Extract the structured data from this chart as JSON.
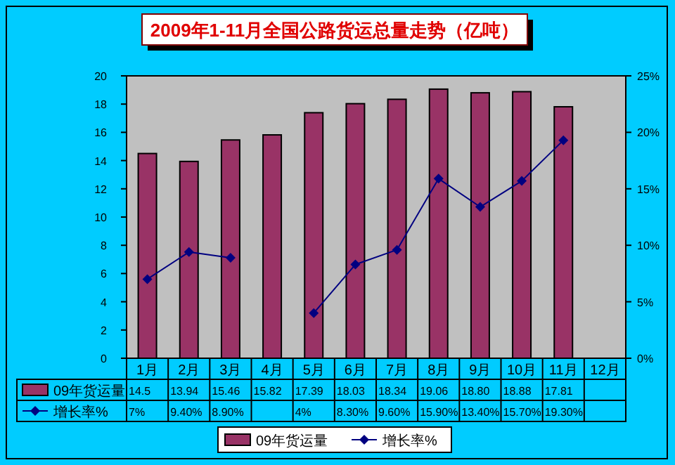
{
  "chart_data": {
    "type": "bar",
    "title": "2009年1-11月全国公路货运总量走势（亿吨）",
    "categories": [
      "1月",
      "2月",
      "3月",
      "4月",
      "5月",
      "6月",
      "7月",
      "8月",
      "9月",
      "10月",
      "11月",
      "12月"
    ],
    "series": [
      {
        "name": "09年货运量",
        "color": "#993366",
        "values": [
          14.5,
          13.94,
          15.46,
          15.82,
          17.39,
          18.03,
          18.34,
          19.06,
          18.8,
          18.88,
          17.81,
          null
        ],
        "value_labels": [
          "14.5",
          "13.94",
          "15.46",
          "15.82",
          "17.39",
          "18.03",
          "18.34",
          "19.06",
          "18.80",
          "18.88",
          "17.81",
          null
        ]
      },
      {
        "name": "增长率%",
        "type": "line",
        "axis": "y2",
        "color": "#000080",
        "marker": "diamond",
        "values": [
          7,
          9.4,
          8.9,
          null,
          4,
          8.3,
          9.6,
          15.9,
          13.4,
          15.7,
          19.3,
          null
        ],
        "value_labels": [
          "7%",
          "9.40%",
          "8.90%",
          null,
          "4%",
          "8.30%",
          "9.60%",
          "15.90%",
          "13.40%",
          "15.70%",
          "19.30%",
          null
        ]
      }
    ],
    "ylim": [
      0,
      20
    ],
    "yticks": [
      0,
      2,
      4,
      6,
      8,
      10,
      12,
      14,
      16,
      18,
      20
    ],
    "y2lim": [
      0,
      25
    ],
    "y2ticks": [
      {
        "value": 0,
        "label": "0%"
      },
      {
        "value": 5,
        "label": "5%"
      },
      {
        "value": 10,
        "label": "10%"
      },
      {
        "value": 15,
        "label": "15%"
      },
      {
        "value": 20,
        "label": "20%"
      },
      {
        "value": 25,
        "label": "25%"
      }
    ],
    "legend": "bottom",
    "grid": false
  }
}
